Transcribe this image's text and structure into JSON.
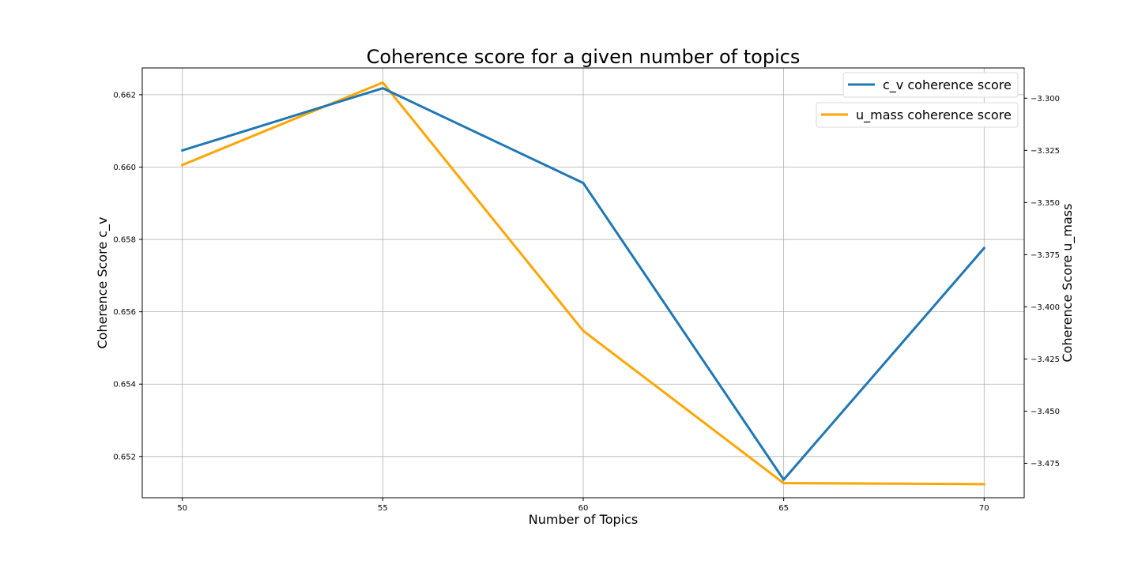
{
  "chart_data": {
    "type": "line",
    "title": "Coherence score for a given number of topics",
    "xlabel": "Number of Topics",
    "ylabel_left": "Coherence Score c_v",
    "ylabel_right": "Coherence Score u_mass",
    "x": [
      50,
      55,
      60,
      65,
      70
    ],
    "xlim": [
      49,
      71
    ],
    "ylim_left": [
      0.65086,
      0.66274
    ],
    "ylim_right": [
      -3.4915,
      -3.2855
    ],
    "xticks": [
      50,
      55,
      60,
      65,
      70
    ],
    "xtick_labels": [
      "50",
      "55",
      "60",
      "65",
      "70"
    ],
    "yticks_left": [
      0.652,
      0.654,
      0.656,
      0.658,
      0.66,
      0.662
    ],
    "ytick_labels_left": [
      "0.652",
      "0.654",
      "0.656",
      "0.658",
      "0.660",
      "0.662"
    ],
    "yticks_right": [
      -3.3,
      -3.325,
      -3.35,
      -3.375,
      -3.4,
      -3.425,
      -3.45,
      -3.475
    ],
    "ytick_labels_right": [
      "−3.300",
      "−3.325",
      "−3.350",
      "−3.375",
      "−3.400",
      "−3.425",
      "−3.450",
      "−3.475"
    ],
    "grid": true,
    "legend_position": "top-right",
    "series": [
      {
        "name": "c_v coherence score",
        "axis": "left",
        "color": "#1f77b4",
        "values": [
          0.66046,
          0.66218,
          0.65956,
          0.65136,
          0.65776
        ]
      },
      {
        "name": "u_mass coherence score",
        "axis": "right",
        "color": "#ffa500",
        "values": [
          -3.332,
          -3.2925,
          -3.4115,
          -3.4845,
          -3.485
        ]
      }
    ]
  }
}
